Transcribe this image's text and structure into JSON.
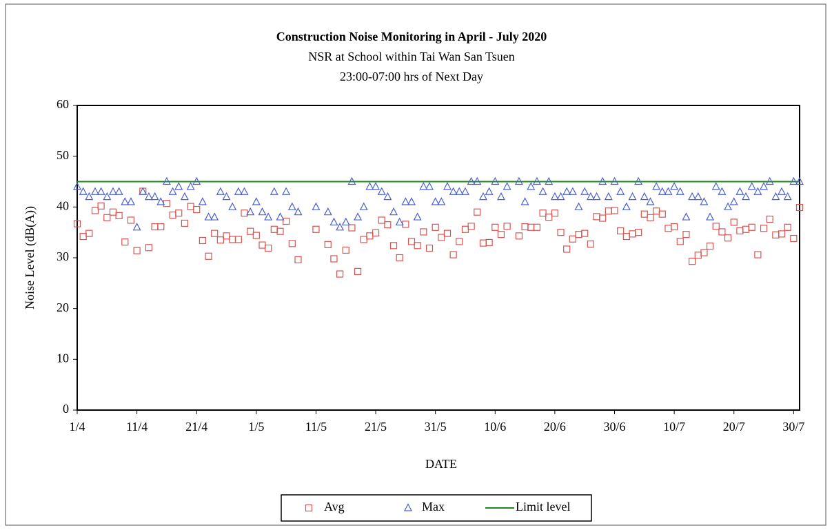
{
  "chart_data": {
    "type": "scatter",
    "title": "Construction  Noise Monitoring  in April - July 2020",
    "subtitle": [
      "NSR at School within Tai Wan San Tsuen",
      "23:00-07:00 hrs of Next Day"
    ],
    "x_label": "DATE",
    "y_label": "Noise Level (dB(A))",
    "categories": [
      "1/4",
      null,
      null,
      null,
      null,
      null,
      null,
      null,
      null,
      null,
      "11/4",
      null,
      null,
      null,
      null,
      null,
      null,
      null,
      null,
      null,
      "21/4",
      null,
      null,
      null,
      null,
      null,
      null,
      null,
      null,
      null,
      "1/5",
      null,
      null,
      null,
      null,
      null,
      null,
      null,
      null,
      null,
      "11/5",
      null,
      null,
      null,
      null,
      null,
      null,
      null,
      null,
      null,
      "21/5",
      null,
      null,
      null,
      null,
      null,
      null,
      null,
      null,
      null,
      "31/5",
      null,
      null,
      null,
      null,
      null,
      null,
      null,
      null,
      null,
      "10/6",
      null,
      null,
      null,
      null,
      null,
      null,
      null,
      null,
      null,
      "20/6",
      null,
      null,
      null,
      null,
      null,
      null,
      null,
      null,
      null,
      "30/6",
      null,
      null,
      null,
      null,
      null,
      null,
      null,
      null,
      null,
      "10/7",
      null,
      null,
      null,
      null,
      null,
      null,
      null,
      null,
      null,
      "20/7",
      null,
      null,
      null,
      null,
      null,
      null,
      null,
      null,
      null,
      "30/7",
      null
    ],
    "series": [
      {
        "name": "Avg",
        "color": "#d9534f",
        "marker": "square",
        "values": [
          36.7,
          34.2,
          34.8,
          39.3,
          40.2,
          37.9,
          39.0,
          38.3,
          33.1,
          37.4,
          31.4,
          43.1,
          32.0,
          36.1,
          36.1,
          40.7,
          38.4,
          38.8,
          36.8,
          40.1,
          39.5,
          33.4,
          30.3,
          34.8,
          33.5,
          34.3,
          33.6,
          33.6,
          38.8,
          35.2,
          34.4,
          32.5,
          31.9,
          35.6,
          35.2,
          37.2,
          32.8,
          29.6,
          null,
          null,
          35.6,
          null,
          32.6,
          29.8,
          26.8,
          31.5,
          35.9,
          27.3,
          33.6,
          34.3,
          34.9,
          37.4,
          36.5,
          32.4,
          30.0,
          36.6,
          33.2,
          32.4,
          35.1,
          31.9,
          36.0,
          34.0,
          34.8,
          30.6,
          33.2,
          35.6,
          36.2,
          39.0,
          32.9,
          33.0,
          36.0,
          34.6,
          36.2,
          null,
          34.3,
          36.1,
          36.0,
          36.0,
          38.8,
          38.0,
          38.8,
          35.0,
          31.7,
          33.7,
          34.6,
          34.8,
          32.7,
          38.1,
          37.8,
          39.2,
          39.3,
          35.3,
          34.2,
          34.7,
          35.0,
          38.6,
          37.9,
          39.2,
          38.6,
          35.8,
          36.1,
          33.2,
          34.6,
          29.3,
          30.5,
          31.0,
          32.3,
          36.2,
          35.1,
          33.9,
          37.0,
          35.3,
          35.6,
          36.0,
          30.6,
          35.8,
          37.6,
          34.5,
          34.7,
          36.0,
          33.8,
          39.9
        ]
      },
      {
        "name": "Max",
        "color": "#4a5fd0",
        "marker": "triangle",
        "values": [
          44,
          43,
          42,
          43,
          43,
          42,
          43,
          43,
          41,
          41,
          36,
          43,
          42,
          42,
          41,
          45,
          43,
          44,
          42,
          44,
          45,
          41,
          38,
          38,
          43,
          42,
          40,
          43,
          43,
          39,
          41,
          39,
          38,
          43,
          38,
          43,
          40,
          39,
          null,
          null,
          40,
          null,
          39,
          37,
          36,
          37,
          45,
          38,
          40,
          44,
          44,
          43,
          42,
          39,
          37,
          41,
          41,
          38,
          44,
          44,
          41,
          41,
          44,
          43,
          43,
          43,
          45,
          45,
          42,
          43,
          45,
          42,
          44,
          null,
          45,
          41,
          44,
          45,
          43,
          45,
          42,
          42,
          43,
          43,
          40,
          43,
          42,
          42,
          45,
          42,
          45,
          43,
          40,
          42,
          45,
          42,
          41,
          44,
          43,
          43,
          44,
          43,
          38,
          42,
          42,
          41,
          38,
          44,
          43,
          40,
          41,
          43,
          42,
          44,
          43,
          44,
          45,
          42,
          43,
          42,
          45,
          45
        ]
      }
    ],
    "limit": {
      "name": "Limit level",
      "value": 45,
      "color": "#1a8a1a"
    },
    "ylim": [
      0,
      60
    ],
    "yticks": [
      0,
      10,
      20,
      30,
      40,
      50,
      60
    ]
  }
}
